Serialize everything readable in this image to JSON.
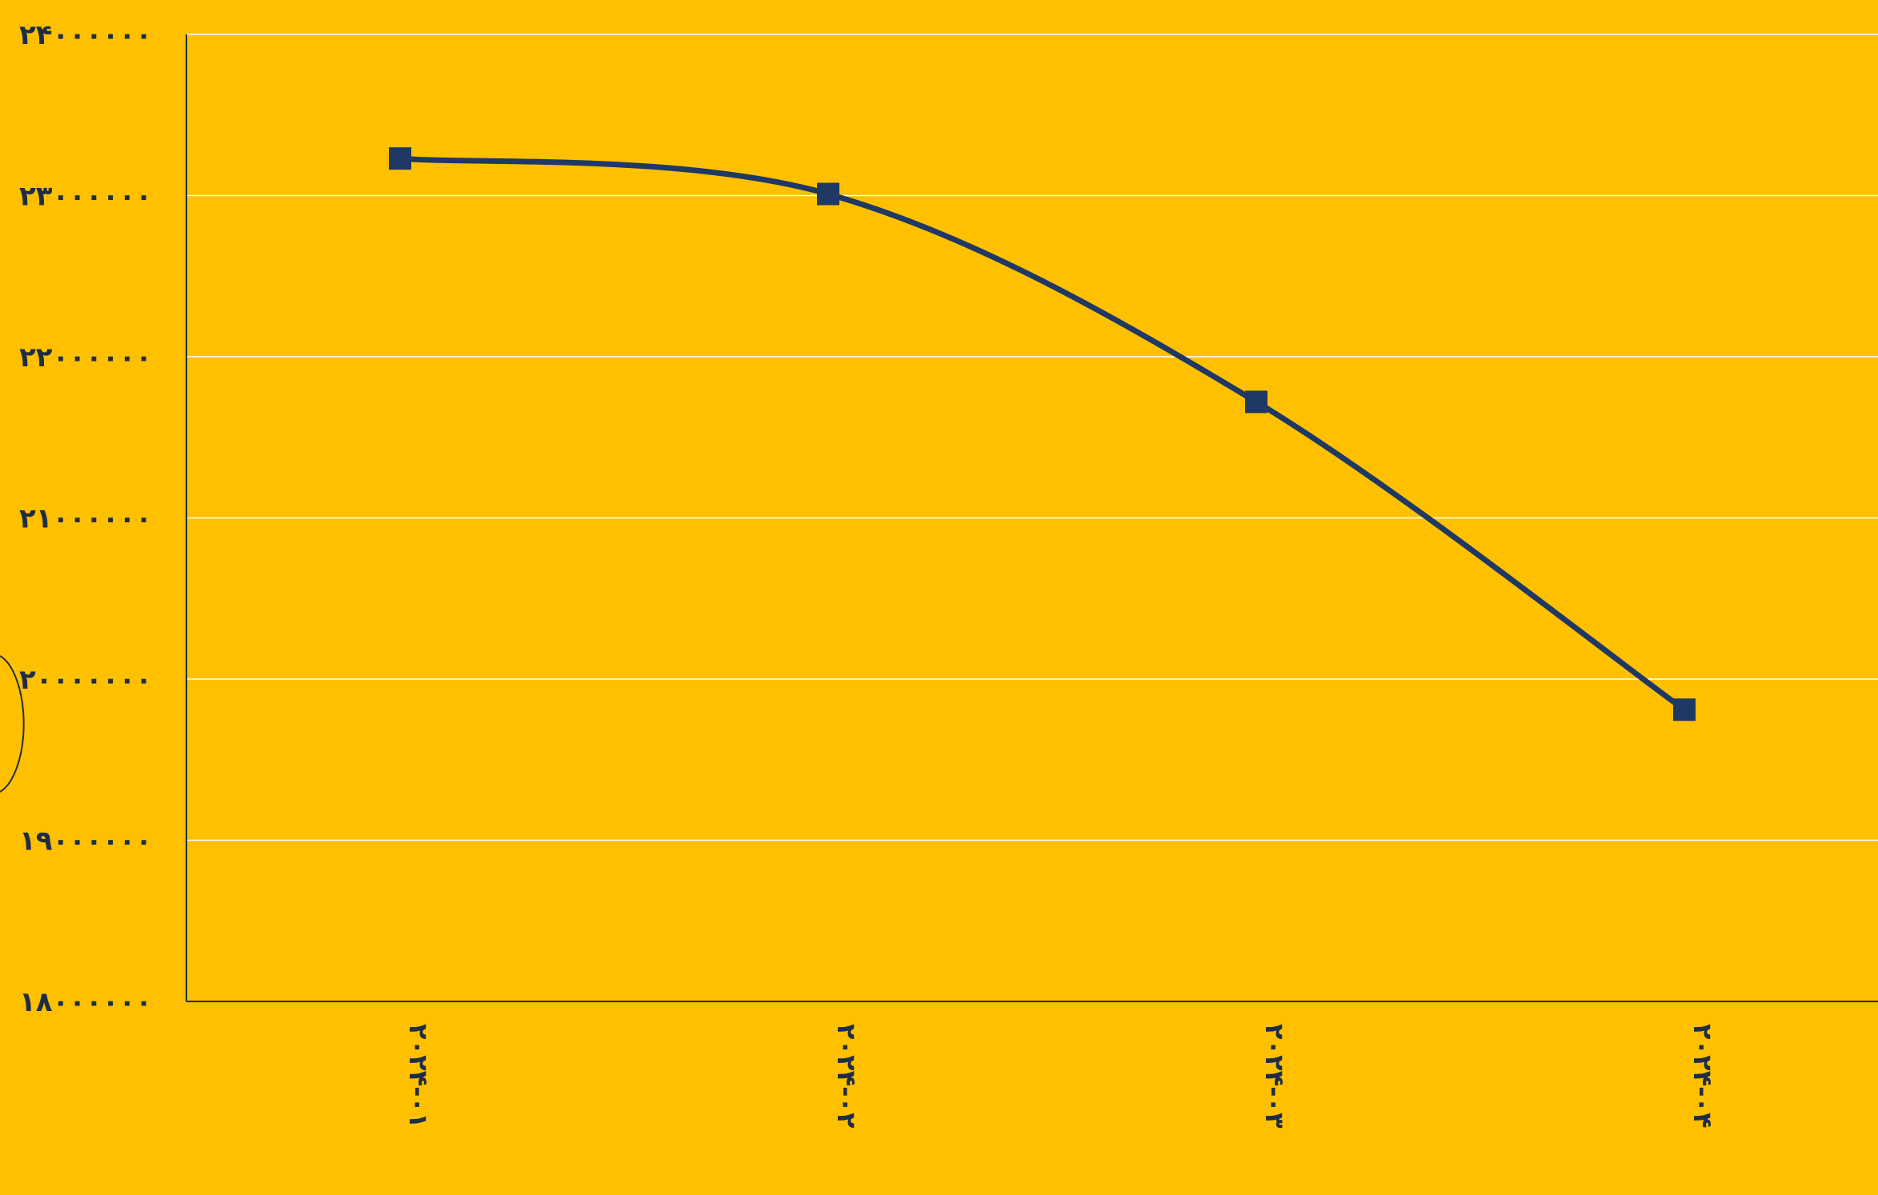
{
  "chart_data": {
    "type": "line",
    "categories": [
      "۲۰۲۴-۰۱",
      "۲۰۲۴-۰۲",
      "۲۰۲۴-۰۳",
      "۲۰۲۴-۰۴"
    ],
    "series": [
      {
        "values": [
          23230000,
          23010000,
          21720000,
          19810000
        ]
      }
    ],
    "ylim": [
      18000000,
      24000000
    ],
    "y_ticks": [
      18000000,
      19000000,
      20000000,
      21000000,
      22000000,
      23000000,
      24000000
    ],
    "y_tick_labels": [
      "۱۸۰۰۰۰۰۰",
      "۱۹۰۰۰۰۰۰",
      "۲۰۰۰۰۰۰۰",
      "۲۱۰۰۰۰۰۰",
      "۲۲۰۰۰۰۰۰",
      "۲۳۰۰۰۰۰۰",
      "۲۴۰۰۰۰۰۰"
    ],
    "grid": true,
    "colors": {
      "background": "#FFC000",
      "line": "#1F3864",
      "grid": "#FFFFFF",
      "axis": "#1F2D44",
      "text": "#1F2D44"
    },
    "marker": "square",
    "smooth": true
  }
}
